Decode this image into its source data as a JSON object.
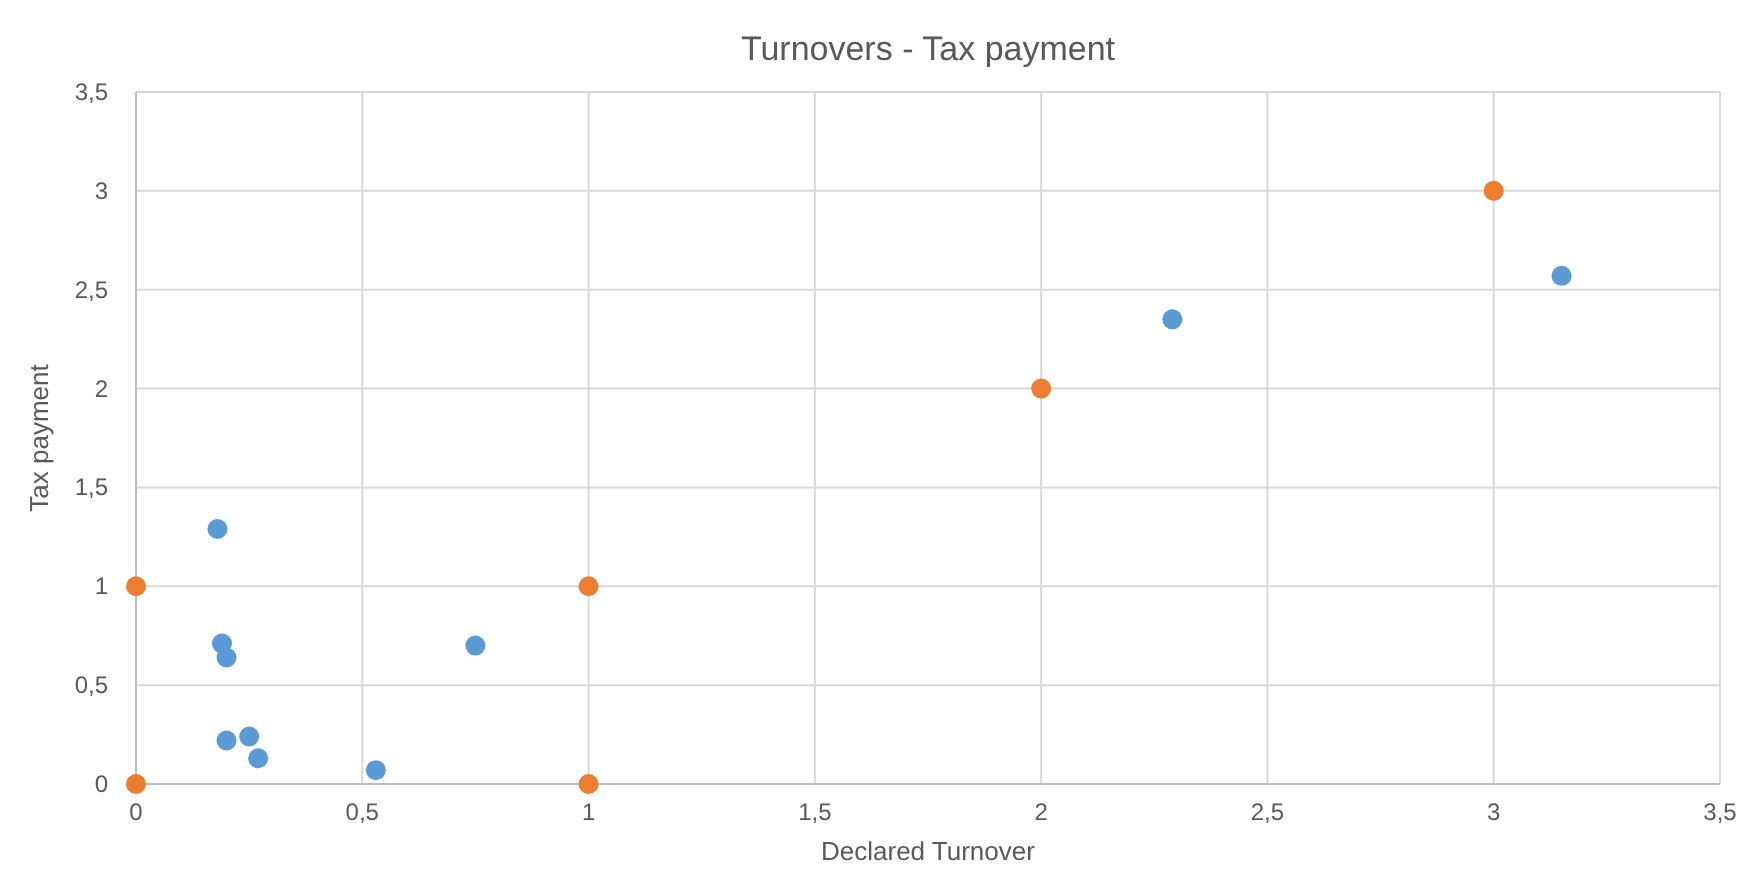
{
  "chart_data": {
    "type": "scatter",
    "title": "Turnovers - Tax payment",
    "xlabel": "Declared Turnover",
    "ylabel": "Tax payment",
    "xlim": [
      0,
      3.5
    ],
    "ylim": [
      0,
      3.5
    ],
    "xticks": [
      0,
      {
        "value": 0.5,
        "label": "0,5"
      },
      1,
      {
        "value": 1.5,
        "label": "1,5"
      },
      2,
      {
        "value": 2.5,
        "label": "2,5"
      },
      3,
      {
        "value": 3.5,
        "label": "3,5"
      }
    ],
    "yticks": [
      0,
      {
        "value": 0.5,
        "label": "0,5"
      },
      1,
      {
        "value": 1.5,
        "label": "1,5"
      },
      2,
      {
        "value": 2.5,
        "label": "2,5"
      },
      3,
      {
        "value": 3.5,
        "label": "3,5"
      }
    ],
    "grid": true,
    "marker": "circle",
    "series": [
      {
        "color": "#5b9bd5",
        "x": [
          0.18,
          0.19,
          0.2,
          0.2,
          0.25,
          0.27,
          0.53,
          0.75,
          2.29,
          3.15
        ],
        "values": [
          1.29,
          0.71,
          0.64,
          0.22,
          0.24,
          0.13,
          0.07,
          0.7,
          2.35,
          2.57
        ]
      },
      {
        "color": "#ed7d31",
        "x": [
          0,
          0,
          1,
          1,
          2,
          3
        ],
        "values": [
          0,
          1,
          0,
          1,
          2,
          3
        ]
      }
    ]
  }
}
